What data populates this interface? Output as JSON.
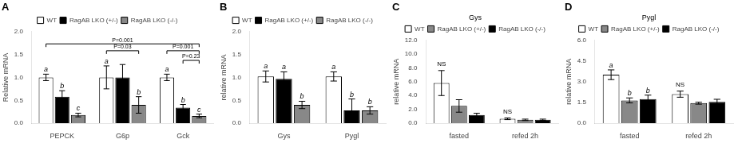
{
  "chart_data": [
    {
      "type": "bar",
      "title": "A",
      "ylabel": "Relative mRNA",
      "categories": [
        "PEPCK",
        "G6p",
        "Gck"
      ],
      "series": [
        {
          "name": "WT",
          "color": "white",
          "values": [
            1.0,
            1.0,
            1.0
          ],
          "errors": [
            0.07,
            0.25,
            0.07
          ],
          "letters": [
            "a",
            "a",
            "a"
          ]
        },
        {
          "name": "RagAB LKO (+/-)",
          "color": "black",
          "values": [
            0.58,
            1.0,
            0.34
          ],
          "errors": [
            0.13,
            0.28,
            0.07
          ],
          "letters": [
            "b",
            null,
            "b"
          ]
        },
        {
          "name": "RagAB LKO (-/-)",
          "color": "#888888",
          "values": [
            0.18,
            0.4,
            0.16
          ],
          "errors": [
            0.04,
            0.18,
            0.04
          ],
          "letters": [
            "c",
            "b",
            "c"
          ]
        }
      ],
      "ylim": [
        0,
        2.0
      ],
      "yticks": [
        {
          "value": 0,
          "label": "0.0"
        },
        0.5,
        {
          "value": 1,
          "label": "1.0"
        },
        1.5,
        {
          "value": 2,
          "label": "2.0"
        }
      ],
      "grid": false,
      "legend": "top",
      "brackets": [
        {
          "text": "P=0.001",
          "y": 1.73,
          "from": {
            "category": "PEPCK",
            "series": "WT"
          },
          "to": {
            "category": "Gck",
            "series": "RagAB LKO (-/-)"
          }
        },
        {
          "text": "P=0.03",
          "y": 1.58,
          "from": {
            "category": "G6p",
            "series": "WT"
          },
          "to": {
            "category": "G6p",
            "series": "RagAB LKO (-/-)"
          }
        },
        {
          "text": "P=0.001",
          "y": 1.58,
          "from": {
            "category": "Gck",
            "series": "WT"
          },
          "to": {
            "category": "Gck",
            "series": "RagAB LKO (-/-)"
          }
        },
        {
          "text": "P=0.23",
          "y": 1.37,
          "from": {
            "category": "Gck",
            "series": "RagAB LKO (+/-)"
          },
          "to": {
            "category": "Gck",
            "series": "RagAB LKO (-/-)"
          }
        }
      ]
    },
    {
      "type": "bar",
      "title": "B",
      "ylabel": "relative mRNA",
      "categories": [
        "Gys",
        "Pygl"
      ],
      "series": [
        {
          "name": "WT",
          "color": "white",
          "values": [
            1.02,
            1.02
          ],
          "errors": [
            0.12,
            0.1
          ],
          "letters": [
            "a",
            "a"
          ]
        },
        {
          "name": "RagAB LKO (+/-)",
          "color": "black",
          "values": [
            0.97,
            0.28
          ],
          "errors": [
            0.15,
            0.25
          ],
          "letters": [
            "a",
            "b"
          ]
        },
        {
          "name": "RagAB LKO (-/-)",
          "color": "#888888",
          "values": [
            0.4,
            0.28
          ],
          "errors": [
            0.08,
            0.08
          ],
          "letters": [
            "b",
            "b"
          ]
        }
      ],
      "ylim": [
        0,
        2.0
      ],
      "yticks": [
        {
          "value": 0,
          "label": "0.0"
        },
        0.5,
        {
          "value": 1,
          "label": "1.0"
        },
        1.5,
        {
          "value": 2,
          "label": "2.0"
        }
      ],
      "grid": false,
      "legend": "top"
    },
    {
      "type": "bar",
      "title": "C",
      "subtitle": "Gys",
      "ylabel": "relative mRNA",
      "categories": [
        "fasted",
        "refed 2h"
      ],
      "series": [
        {
          "name": "WT",
          "color": "white",
          "values": [
            5.8,
            0.65
          ],
          "errors": [
            1.8,
            0.12
          ]
        },
        {
          "name": "RagAB LKO (+/-)",
          "color": "#888888",
          "values": [
            2.5,
            0.5
          ],
          "errors": [
            0.9,
            0.1
          ]
        },
        {
          "name": "RagAB LKO (-/-)",
          "color": "black",
          "values": [
            1.2,
            0.5
          ],
          "errors": [
            0.25,
            0.1
          ]
        }
      ],
      "ylim": [
        0,
        12.0
      ],
      "yticks": [
        {
          "value": 0,
          "label": "0.0"
        },
        {
          "value": 2,
          "label": "2.0"
        },
        {
          "value": 4,
          "label": "4.0"
        },
        {
          "value": 6,
          "label": "6.0"
        },
        {
          "value": 8,
          "label": "8.0"
        },
        {
          "value": 10,
          "label": "10.0"
        },
        {
          "value": 12,
          "label": "12.0"
        }
      ],
      "grid": false,
      "legend": "top",
      "annotations": [
        {
          "text": "NS",
          "category": "fasted",
          "series": "WT"
        },
        {
          "text": "NS",
          "category": "refed 2h",
          "series": "WT"
        }
      ]
    },
    {
      "type": "bar",
      "title": "D",
      "subtitle": "Pygl",
      "ylabel": "relative mRNA",
      "categories": [
        "fasted",
        "refed 2h"
      ],
      "series": [
        {
          "name": "WT",
          "color": "white",
          "values": [
            3.5,
            2.1
          ],
          "errors": [
            0.35,
            0.22
          ],
          "letters": [
            "a",
            null
          ]
        },
        {
          "name": "RagAB LKO (+/-)",
          "color": "#888888",
          "values": [
            1.65,
            1.45
          ],
          "errors": [
            0.18,
            0.07
          ],
          "letters": [
            "b",
            null
          ]
        },
        {
          "name": "RagAB LKO (-/-)",
          "color": "black",
          "values": [
            1.75,
            1.55
          ],
          "errors": [
            0.28,
            0.18
          ],
          "letters": [
            "b",
            null
          ]
        }
      ],
      "ylim": [
        0,
        6.0
      ],
      "yticks": [
        {
          "value": 0,
          "label": "0.0"
        },
        1.5,
        {
          "value": 3,
          "label": "3.0"
        },
        4.5,
        {
          "value": 6,
          "label": "6.0"
        }
      ],
      "grid": false,
      "legend": "top",
      "annotations": [
        {
          "text": "NS",
          "category": "refed 2h",
          "series": "WT"
        }
      ]
    }
  ]
}
